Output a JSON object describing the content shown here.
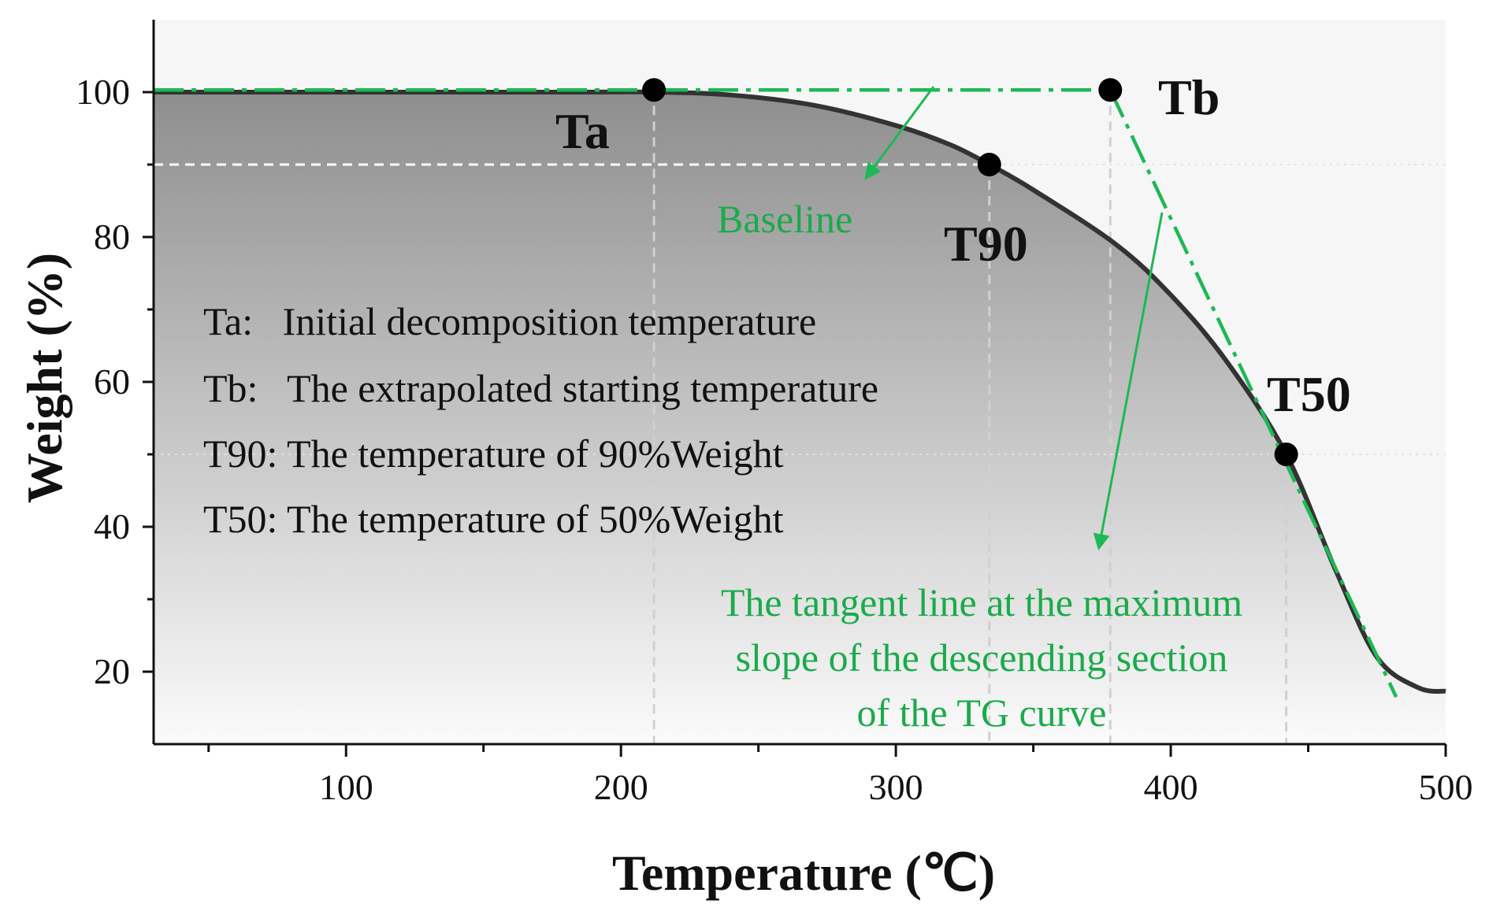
{
  "chart_data": {
    "type": "line",
    "title": "",
    "xlabel": "Temperature (℃)",
    "ylabel": "Weight (%)",
    "xlim": [
      30,
      500
    ],
    "ylim": [
      10,
      110
    ],
    "x_ticks": [
      100,
      200,
      300,
      400,
      500
    ],
    "y_ticks": [
      20,
      40,
      60,
      80,
      100
    ],
    "colors": {
      "curve": "#333333",
      "guide": "#1db954",
      "accent_text": "#1aab4a",
      "helper": "#d0d0d0"
    },
    "series": [
      {
        "name": "TG curve",
        "x": [
          30,
          100,
          180,
          212,
          240,
          270,
          300,
          320,
          334,
          350,
          380,
          400,
          420,
          442,
          460,
          475,
          490,
          500
        ],
        "y": [
          100,
          100,
          100,
          100,
          99.6,
          98.2,
          95.4,
          92.7,
          90,
          86.5,
          79,
          72,
          63,
          50,
          34,
          22,
          17.8,
          17.3
        ]
      }
    ],
    "baseline": {
      "label": "Baseline",
      "x": [
        30,
        378
      ],
      "y": [
        100.3,
        100.3
      ]
    },
    "tangent": {
      "label_lines": [
        "The tangent line at the maximum",
        "slope of the descending section",
        "of the TG curve"
      ],
      "x": [
        378,
        482
      ],
      "y": [
        100.3,
        16.5
      ]
    },
    "points": [
      {
        "name": "Ta",
        "x": 212,
        "y": 100.3
      },
      {
        "name": "Tb",
        "x": 378,
        "y": 100.3
      },
      {
        "name": "T90",
        "x": 334,
        "y": 90
      },
      {
        "name": "T50",
        "x": 442,
        "y": 50
      }
    ],
    "legend_lines": [
      "Ta:   Initial decomposition temperature",
      "Tb:   The extrapolated starting temperature",
      "T90: The temperature of 90%Weight",
      "T50: The temperature of 50%Weight"
    ]
  }
}
